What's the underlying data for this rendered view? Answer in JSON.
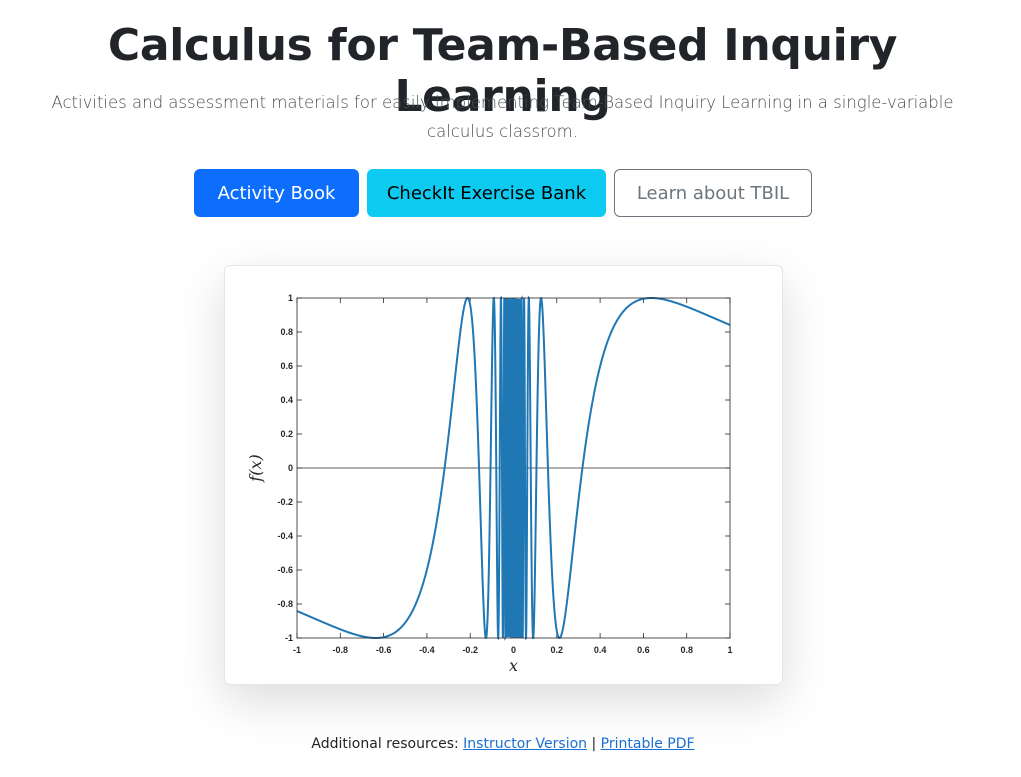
{
  "header": {
    "title": "Calculus for Team-Based Inquiry Learning",
    "subtitle": "Activities and assessment materials for easily implementing Team-Based Inquiry Learning in a single-variable calculus classrom."
  },
  "buttons": {
    "activity_book": "Activity Book",
    "checkit": "CheckIt Exercise Bank",
    "learn_tbil": "Learn about TBIL"
  },
  "colors": {
    "primary": "#0d6efd",
    "info": "#0dcaf0",
    "secondary": "#6c757d",
    "curve": "#1f77b4"
  },
  "chart_data": {
    "type": "line",
    "title": "",
    "xlabel": "x",
    "ylabel": "f(x)",
    "xlim": [
      -1,
      1
    ],
    "ylim": [
      -1,
      1
    ],
    "x_ticks": [
      -1,
      -0.8,
      -0.6,
      -0.4,
      -0.2,
      0,
      0.2,
      0.4,
      0.6,
      0.8,
      1
    ],
    "x_tick_labels": [
      "-1",
      "-0.8",
      "-0.6",
      "-0.4",
      "-0.2",
      "0",
      "0.2",
      "0.4",
      "0.6",
      "0.8",
      "1"
    ],
    "y_ticks": [
      -1,
      -0.8,
      -0.6,
      -0.4,
      -0.2,
      0,
      0.2,
      0.4,
      0.6,
      0.8,
      1
    ],
    "y_tick_labels": [
      "-1",
      "-0.8",
      "-0.6",
      "-0.4",
      "-0.2",
      "0",
      "0.2",
      "0.4",
      "0.6",
      "0.8",
      "1"
    ],
    "grid": false,
    "function": "sin(1/x)",
    "series": [
      {
        "x": [
          -1,
          -0.9,
          -0.8,
          -0.7,
          -0.637,
          -0.55,
          -0.45,
          -0.35,
          -0.318,
          -0.28,
          -0.25,
          -0.212,
          -0.18,
          -0.159,
          -0.14,
          -0.127,
          -0.106,
          -0.091,
          0.091,
          0.106,
          0.127,
          0.14,
          0.159,
          0.18,
          0.212,
          0.25,
          0.28,
          0.318,
          0.35,
          0.45,
          0.55,
          0.637,
          0.7,
          0.8,
          0.9,
          1
        ],
        "y": [
          -0.841,
          -0.896,
          -0.949,
          -0.99,
          -1,
          -0.98,
          -0.79,
          -0.28,
          0,
          0.43,
          0.76,
          1,
          0.6,
          0,
          -0.75,
          -1,
          0,
          1,
          -1,
          0,
          1,
          0.75,
          0,
          -0.6,
          -1,
          -0.76,
          -0.43,
          0,
          0.28,
          0.79,
          0.98,
          1,
          0.99,
          0.949,
          0.896,
          0.841
        ]
      }
    ]
  },
  "footer": {
    "prefix": "Additional resources:",
    "instructor_link": "Instructor Version",
    "separator": "|",
    "pdf_link": "Printable PDF"
  }
}
